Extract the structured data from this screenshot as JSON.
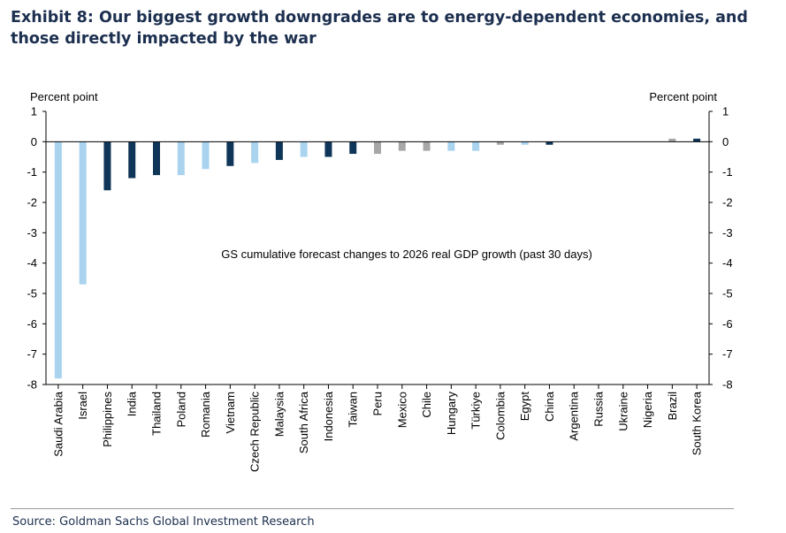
{
  "title": "Exhibit 8: Our biggest growth downgrades are to energy-dependent economies, and those directly impacted by the war",
  "source": "Source: Goldman Sachs Global Investment Research",
  "chart_data": {
    "type": "bar",
    "annotation": "GS cumulative forecast changes to 2026 real GDP growth (past 30 days)",
    "ylabel_left": "Percent point",
    "ylabel_right": "Percent point",
    "ylim": [
      -8,
      1
    ],
    "yticks": [
      1,
      0,
      -1,
      -2,
      -3,
      -4,
      -5,
      -6,
      -7,
      -8
    ],
    "categories": [
      "Saudi Arabia",
      "Israel",
      "Philippines",
      "India",
      "Thailand",
      "Poland",
      "Romania",
      "Vietnam",
      "Czech Republic",
      "Malaysia",
      "South Africa",
      "Indonesia",
      "Taiwan",
      "Peru",
      "Mexico",
      "Chile",
      "Hungary",
      "Türkiye",
      "Colombia",
      "Egypt",
      "China",
      "Argentina",
      "Russia",
      "Ukraine",
      "Nigeria",
      "Brazil",
      "South Korea"
    ],
    "values": [
      -7.8,
      -4.7,
      -1.6,
      -1.2,
      -1.1,
      -1.1,
      -0.9,
      -0.8,
      -0.7,
      -0.6,
      -0.5,
      -0.5,
      -0.4,
      -0.4,
      -0.3,
      -0.3,
      -0.3,
      -0.3,
      -0.1,
      -0.1,
      -0.1,
      0,
      0,
      0,
      0,
      0.1,
      0.1
    ],
    "groups": [
      "light",
      "light",
      "dark",
      "dark",
      "dark",
      "light",
      "light",
      "dark",
      "light",
      "dark",
      "light",
      "dark",
      "dark",
      "gray",
      "gray",
      "gray",
      "light",
      "light",
      "gray",
      "light",
      "dark",
      "gray",
      "gray",
      "gray",
      "gray",
      "gray",
      "dark"
    ],
    "colors": {
      "light": "#a9d3ef",
      "dark": "#0f3558",
      "gray": "#a7a7a7",
      "axis": "#000000"
    }
  }
}
